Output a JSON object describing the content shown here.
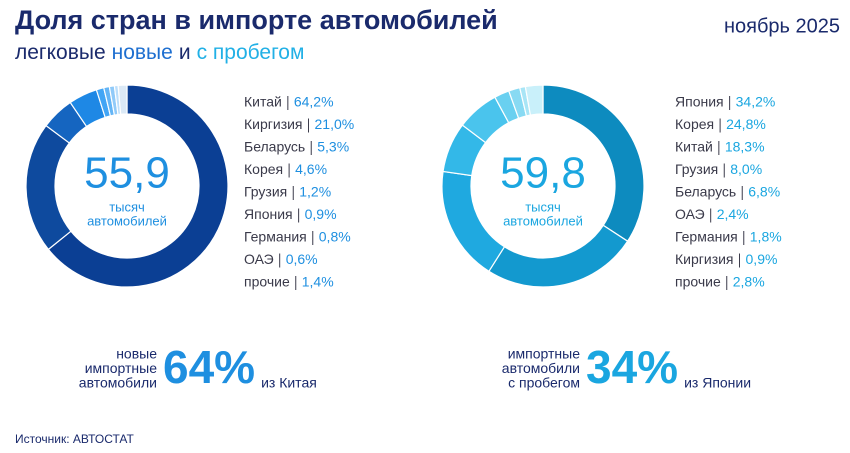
{
  "header": {
    "title": "Доля стран в импорте автомобилей",
    "subtitle": [
      {
        "text": "легковые",
        "color": "#1a2a6c"
      },
      {
        "text": "новые",
        "color": "#1e6fd0"
      },
      {
        "text": "и",
        "color": "#1a2a6c"
      },
      {
        "text": "с пробегом",
        "color": "#21b0e6"
      }
    ],
    "date": "ноябрь 2025"
  },
  "chart_data": [
    {
      "type": "pie",
      "donut": true,
      "total": 55.9,
      "total_label": "55,9",
      "total_unit": [
        "тысяч",
        "автомобилей"
      ],
      "categories": [
        "Китай",
        "Киргизия",
        "Беларусь",
        "Корея",
        "Грузия",
        "Япония",
        "Германия",
        "ОАЭ",
        "прочие"
      ],
      "values": [
        64.2,
        21.0,
        5.3,
        4.6,
        1.2,
        0.9,
        0.8,
        0.6,
        1.4
      ],
      "value_labels": [
        "64,2%",
        "21,0%",
        "5,3%",
        "4,6%",
        "1,2%",
        "0,9%",
        "0,8%",
        "0,6%",
        "1,4%"
      ],
      "colors": [
        "#0b3f94",
        "#0e4a9e",
        "#1565c0",
        "#1e88e5",
        "#42a5f5",
        "#64b5f6",
        "#90caf9",
        "#bbdefb",
        "#dbe9f6"
      ],
      "accent": "#1e8fe0",
      "note": {
        "lines": [
          "новые",
          "импортные",
          "автомобили"
        ],
        "share": {
          "value": 64,
          "label": "64%"
        },
        "suffix": "из Китая"
      }
    },
    {
      "type": "pie",
      "donut": true,
      "total": 59.8,
      "total_label": "59,8",
      "total_unit": [
        "тысяч",
        "автомобилей"
      ],
      "categories": [
        "Япония",
        "Корея",
        "Китай",
        "Грузия",
        "Беларусь",
        "ОАЭ",
        "Германия",
        "Киргизия",
        "прочие"
      ],
      "values": [
        34.2,
        24.8,
        18.3,
        8.0,
        6.8,
        2.4,
        1.8,
        0.9,
        2.8
      ],
      "value_labels": [
        "34,2%",
        "24,8%",
        "18,3%",
        "8,0%",
        "6,8%",
        "2,4%",
        "1,8%",
        "0,9%",
        "2,8%"
      ],
      "colors": [
        "#0d8bbf",
        "#1399cf",
        "#1fa9e0",
        "#33b8e8",
        "#4ac4ed",
        "#69d0f0",
        "#88daf3",
        "#a8e5f6",
        "#c9f0fa"
      ],
      "accent": "#1aa6e0",
      "note": {
        "lines": [
          "импортные",
          "автомобили",
          "с пробегом"
        ],
        "share": {
          "value": 34,
          "label": "34%"
        },
        "suffix": "из Японии"
      }
    }
  ],
  "source": "Источник: АВТОСТАТ"
}
